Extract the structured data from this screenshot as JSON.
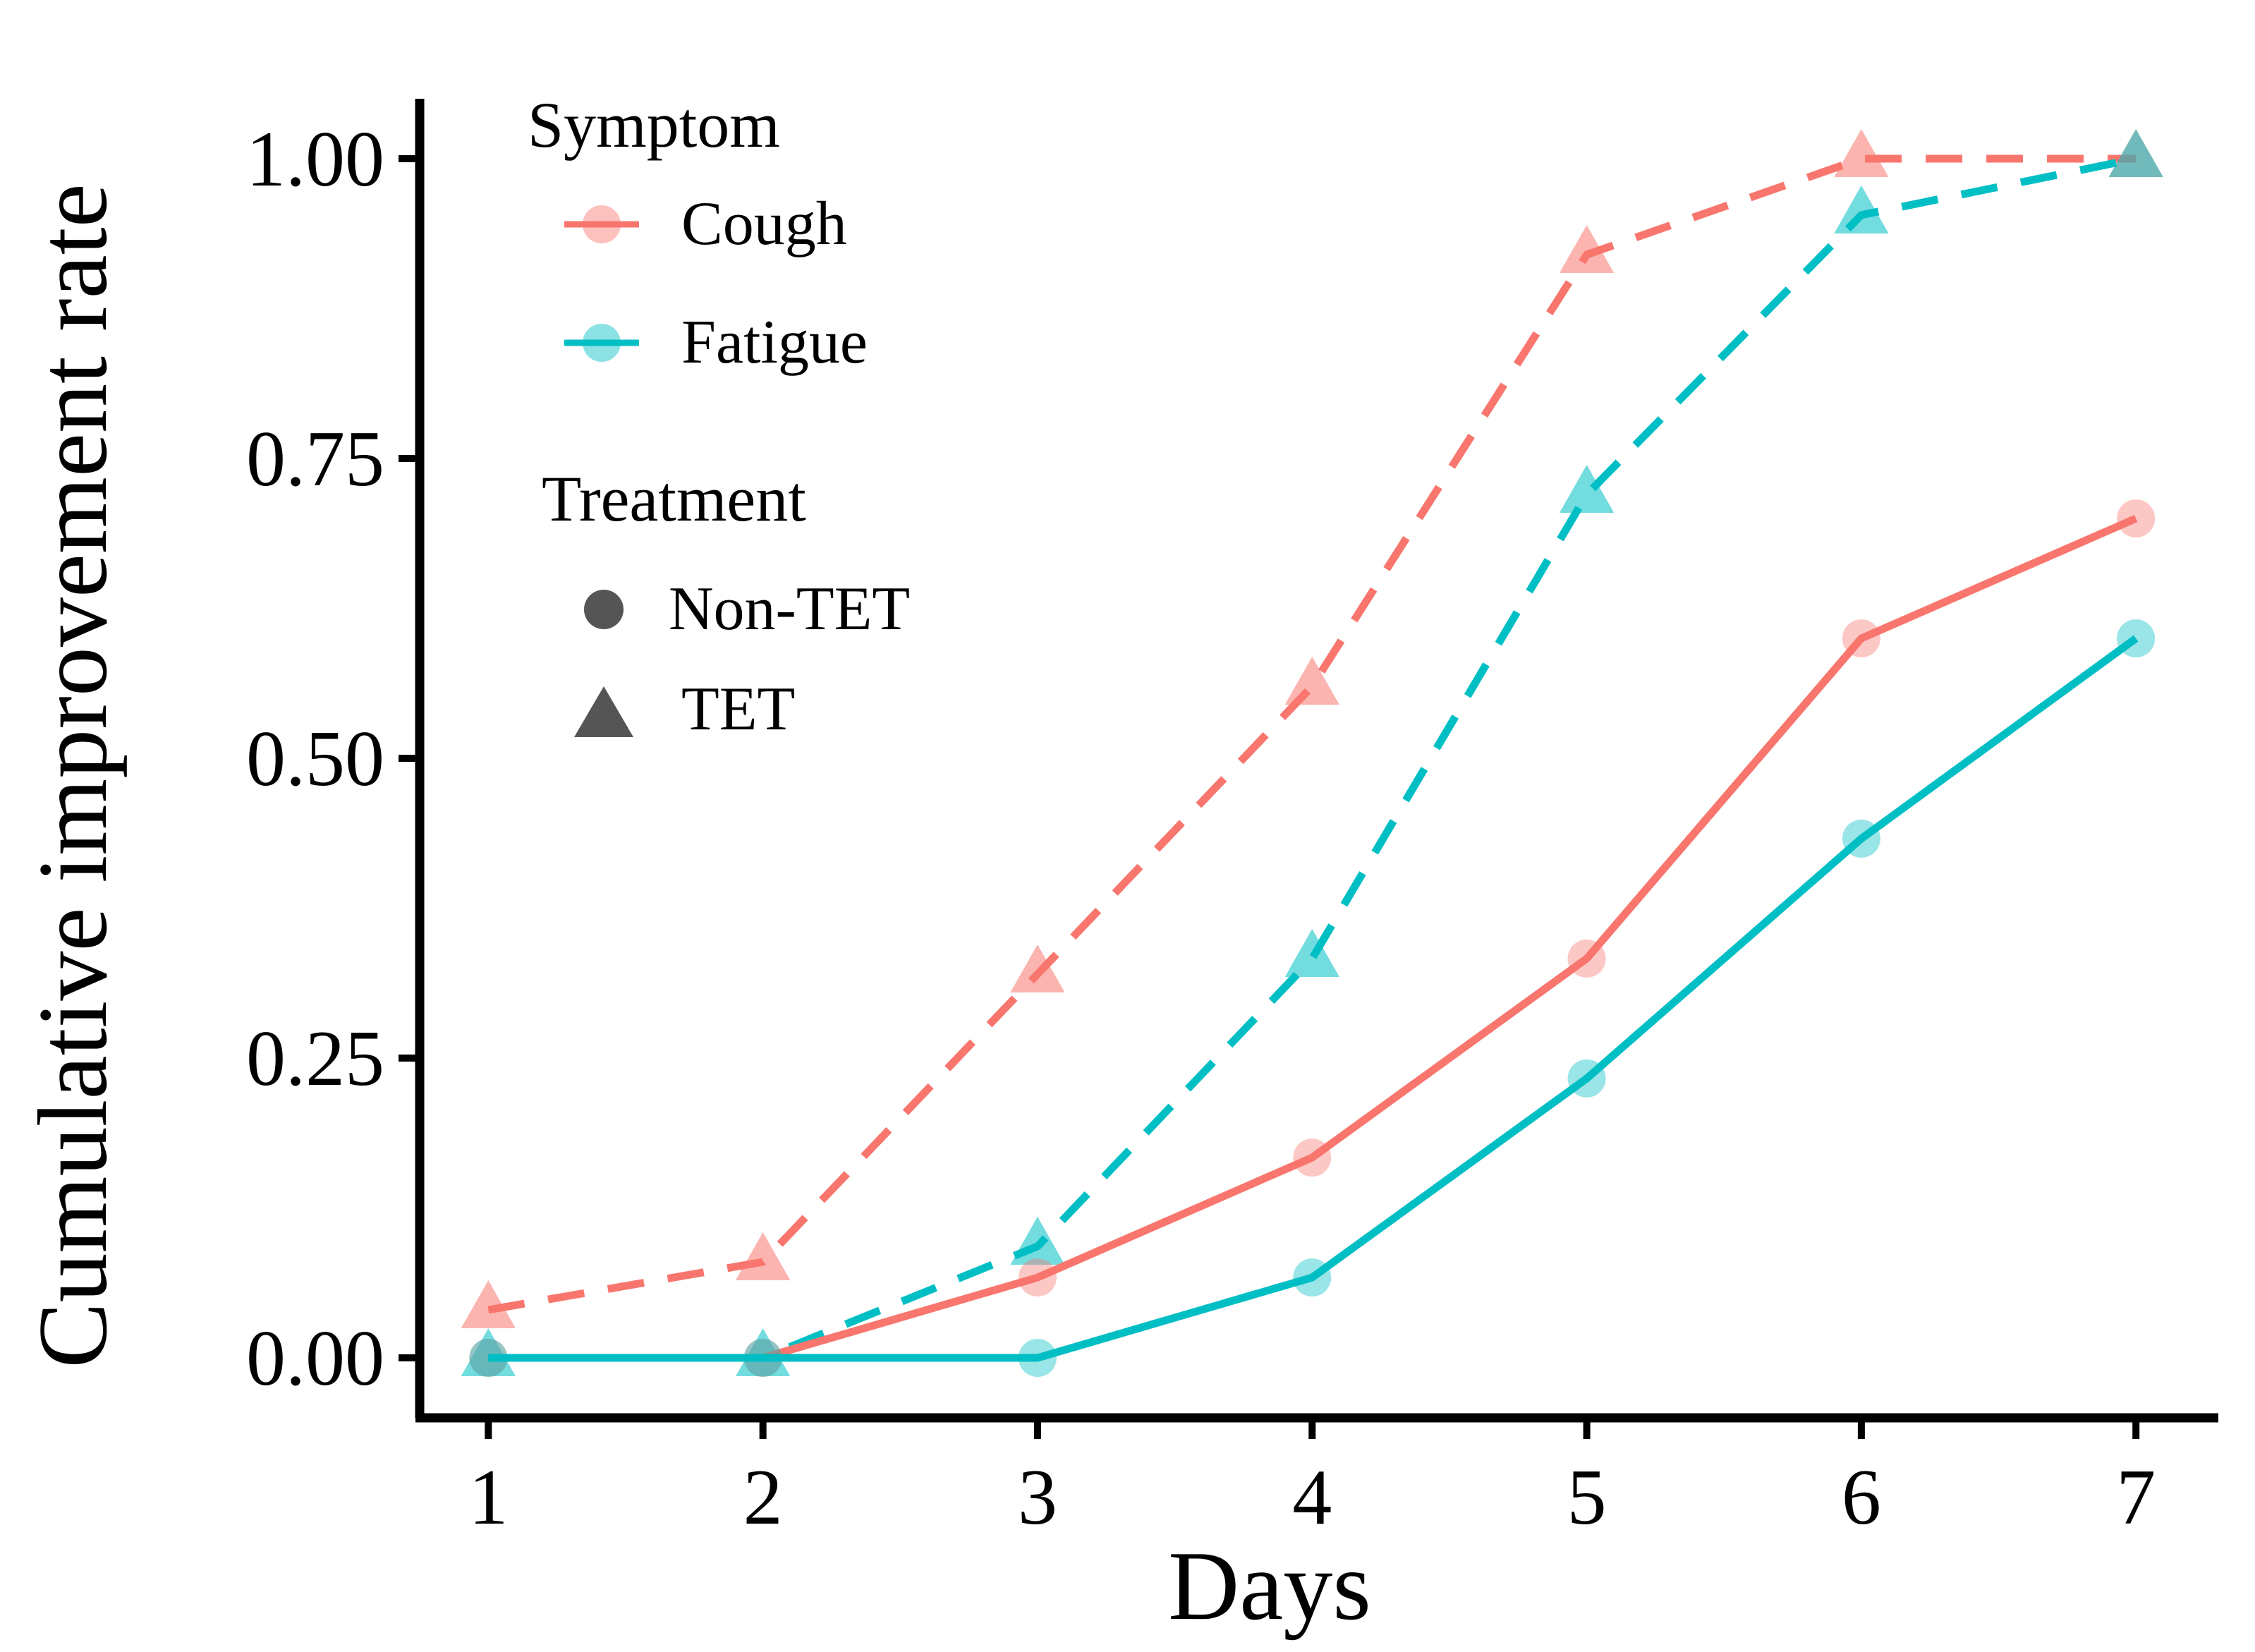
{
  "chart_data": {
    "type": "line",
    "title": "",
    "xlabel": "Days",
    "ylabel": "Cumulative improvement rate",
    "x": [
      1,
      2,
      3,
      4,
      5,
      6,
      7
    ],
    "xticks": [
      "1",
      "2",
      "3",
      "4",
      "5",
      "6",
      "7"
    ],
    "xlim": [
      0.75,
      7.3
    ],
    "ylim": [
      -0.05,
      1.05
    ],
    "yticks": [
      0.0,
      0.25,
      0.5,
      0.75,
      1.0
    ],
    "ytick_labels": [
      "0.00",
      "0.25",
      "0.50",
      "0.75",
      "1.00"
    ],
    "grid": false,
    "legend_position": "top-left",
    "colors": {
      "Cough": "#F8766D",
      "Fatigue": "#00BFC4",
      "legend_shape": "#555555"
    },
    "legends": {
      "symptom": {
        "title": "Symptom",
        "items": [
          "Cough",
          "Fatigue"
        ]
      },
      "treatment": {
        "title": "Treatment",
        "items": [
          "Non-TET",
          "TET"
        ]
      }
    },
    "series": [
      {
        "name": "Cough, TET",
        "symptom": "Cough",
        "treatment": "TET",
        "line": "dashed",
        "marker": "triangle",
        "values": [
          0.04,
          0.08,
          0.32,
          0.56,
          0.92,
          1.0,
          1.0
        ]
      },
      {
        "name": "Fatigue, TET",
        "symptom": "Fatigue",
        "treatment": "TET",
        "line": "dashed",
        "marker": "triangle",
        "values": [
          0.0,
          0.0,
          0.093,
          0.333,
          0.72,
          0.953,
          1.0
        ]
      },
      {
        "name": "Cough, Non-TET",
        "symptom": "Cough",
        "treatment": "Non-TET",
        "line": "solid",
        "marker": "circle",
        "values": [
          0.0,
          0.0,
          0.067,
          0.167,
          0.333,
          0.6,
          0.7
        ]
      },
      {
        "name": "Fatigue, Non-TET",
        "symptom": "Fatigue",
        "treatment": "Non-TET",
        "line": "solid",
        "marker": "circle",
        "values": [
          0.0,
          0.0,
          0.0,
          0.067,
          0.233,
          0.433,
          0.6
        ]
      }
    ]
  }
}
